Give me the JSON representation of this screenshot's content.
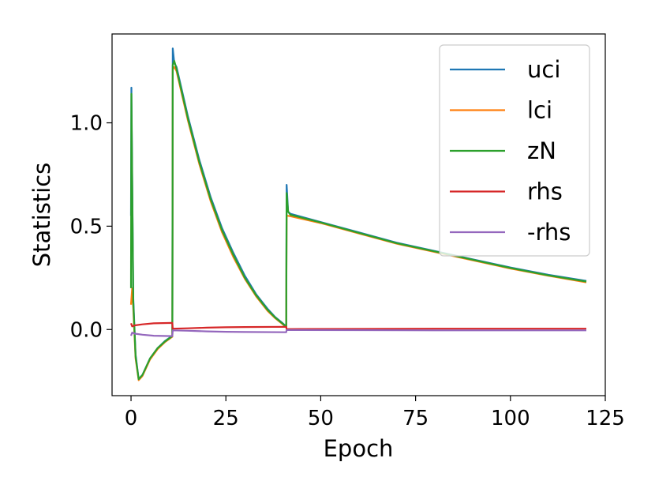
{
  "chart_data": {
    "type": "line",
    "title": "",
    "xlabel": "Epoch",
    "ylabel": "Statistics",
    "xlim": [
      -5,
      125
    ],
    "ylim": [
      -0.32,
      1.43
    ],
    "xticks": [
      0,
      25,
      50,
      75,
      100,
      125
    ],
    "xtick_labels": [
      "0",
      "25",
      "50",
      "75",
      "100",
      "125"
    ],
    "yticks": [
      0.0,
      0.5,
      1.0
    ],
    "ytick_labels": [
      "0.0",
      "0.5",
      "1.0"
    ],
    "grid": false,
    "legend_position": "top-right",
    "series": [
      {
        "name": "uci",
        "color": "#1f77b4",
        "points": [
          [
            0,
            0.55
          ],
          [
            0.1,
            1.17
          ],
          [
            0.3,
            0.75
          ],
          [
            0.6,
            0.15
          ],
          [
            1.2,
            -0.12
          ],
          [
            2,
            -0.24
          ],
          [
            3,
            -0.22
          ],
          [
            5,
            -0.14
          ],
          [
            7,
            -0.09
          ],
          [
            9,
            -0.055
          ],
          [
            10.9,
            -0.03
          ],
          [
            11,
            1.36
          ],
          [
            11.4,
            1.29
          ],
          [
            12,
            1.27
          ],
          [
            15,
            1.03
          ],
          [
            18,
            0.82
          ],
          [
            21,
            0.64
          ],
          [
            24,
            0.49
          ],
          [
            27,
            0.37
          ],
          [
            30,
            0.26
          ],
          [
            33,
            0.17
          ],
          [
            36,
            0.1
          ],
          [
            38,
            0.06
          ],
          [
            40,
            0.03
          ],
          [
            40.9,
            0.015
          ],
          [
            41,
            0.7
          ],
          [
            41.4,
            0.57
          ],
          [
            42,
            0.56
          ],
          [
            50,
            0.52
          ],
          [
            60,
            0.47
          ],
          [
            70,
            0.42
          ],
          [
            80,
            0.38
          ],
          [
            90,
            0.34
          ],
          [
            100,
            0.3
          ],
          [
            110,
            0.265
          ],
          [
            120,
            0.235
          ]
        ]
      },
      {
        "name": "lci",
        "color": "#ff7f0e",
        "points": [
          [
            0,
            0.12
          ],
          [
            0.3,
            0.2
          ],
          [
            0.6,
            0.1
          ],
          [
            1.2,
            -0.14
          ],
          [
            2,
            -0.245
          ],
          [
            3,
            -0.225
          ],
          [
            5,
            -0.145
          ],
          [
            7,
            -0.095
          ],
          [
            9,
            -0.06
          ],
          [
            10.9,
            -0.035
          ],
          [
            11,
            1.26
          ],
          [
            11.4,
            1.27
          ],
          [
            12,
            1.25
          ],
          [
            15,
            1.01
          ],
          [
            18,
            0.8
          ],
          [
            21,
            0.62
          ],
          [
            24,
            0.47
          ],
          [
            27,
            0.35
          ],
          [
            30,
            0.245
          ],
          [
            33,
            0.16
          ],
          [
            36,
            0.09
          ],
          [
            38,
            0.055
          ],
          [
            40,
            0.025
          ],
          [
            40.9,
            0.01
          ],
          [
            41,
            0.55
          ],
          [
            41.4,
            0.55
          ],
          [
            42,
            0.548
          ],
          [
            50,
            0.515
          ],
          [
            60,
            0.465
          ],
          [
            70,
            0.415
          ],
          [
            80,
            0.375
          ],
          [
            90,
            0.335
          ],
          [
            100,
            0.295
          ],
          [
            110,
            0.26
          ],
          [
            120,
            0.228
          ]
        ]
      },
      {
        "name": "zN",
        "color": "#2ca02c",
        "points": [
          [
            0,
            0.2
          ],
          [
            0.1,
            1.14
          ],
          [
            0.3,
            0.72
          ],
          [
            0.6,
            0.13
          ],
          [
            1.2,
            -0.13
          ],
          [
            2,
            -0.24
          ],
          [
            3,
            -0.22
          ],
          [
            5,
            -0.14
          ],
          [
            7,
            -0.09
          ],
          [
            9,
            -0.057
          ],
          [
            10.9,
            -0.032
          ],
          [
            11,
            1.28
          ],
          [
            11.4,
            1.3
          ],
          [
            12,
            1.26
          ],
          [
            15,
            1.02
          ],
          [
            18,
            0.81
          ],
          [
            21,
            0.63
          ],
          [
            24,
            0.48
          ],
          [
            27,
            0.36
          ],
          [
            30,
            0.25
          ],
          [
            33,
            0.165
          ],
          [
            36,
            0.095
          ],
          [
            38,
            0.058
          ],
          [
            40,
            0.028
          ],
          [
            40.9,
            0.012
          ],
          [
            41,
            0.66
          ],
          [
            41.4,
            0.57
          ],
          [
            42,
            0.555
          ],
          [
            50,
            0.518
          ],
          [
            60,
            0.468
          ],
          [
            70,
            0.418
          ],
          [
            80,
            0.378
          ],
          [
            90,
            0.338
          ],
          [
            100,
            0.298
          ],
          [
            110,
            0.262
          ],
          [
            120,
            0.232
          ]
        ]
      },
      {
        "name": "rhs",
        "color": "#d62728",
        "points": [
          [
            0,
            0.03
          ],
          [
            0.3,
            0.015
          ],
          [
            1,
            0.02
          ],
          [
            3,
            0.025
          ],
          [
            6,
            0.03
          ],
          [
            10.9,
            0.032
          ],
          [
            11,
            0.004
          ],
          [
            15,
            0.006
          ],
          [
            20,
            0.009
          ],
          [
            25,
            0.011
          ],
          [
            30,
            0.012
          ],
          [
            40.9,
            0.013
          ],
          [
            41,
            0.002
          ],
          [
            60,
            0.003
          ],
          [
            80,
            0.004
          ],
          [
            100,
            0.004
          ],
          [
            120,
            0.004
          ]
        ]
      },
      {
        "name": "-rhs",
        "color": "#9467bd",
        "points": [
          [
            0,
            -0.03
          ],
          [
            0.3,
            -0.015
          ],
          [
            1,
            -0.02
          ],
          [
            3,
            -0.025
          ],
          [
            6,
            -0.03
          ],
          [
            10.9,
            -0.032
          ],
          [
            11,
            -0.004
          ],
          [
            15,
            -0.006
          ],
          [
            20,
            -0.009
          ],
          [
            25,
            -0.011
          ],
          [
            30,
            -0.012
          ],
          [
            40.9,
            -0.013
          ],
          [
            41,
            -0.002
          ],
          [
            60,
            -0.003
          ],
          [
            80,
            -0.004
          ],
          [
            100,
            -0.004
          ],
          [
            120,
            -0.004
          ]
        ]
      }
    ]
  }
}
